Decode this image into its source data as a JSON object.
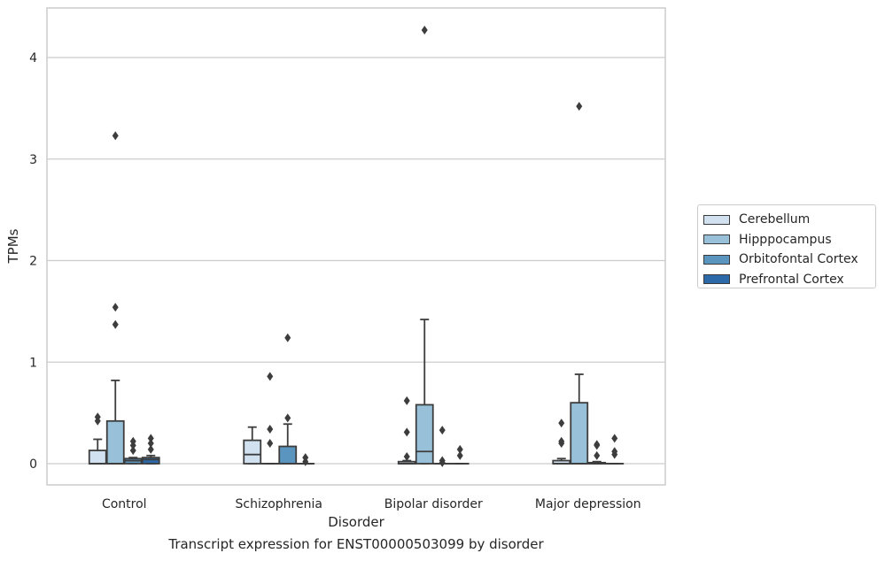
{
  "caption": "Transcript expression for ENST00000503099 by disorder",
  "chart_data": {
    "type": "box",
    "xlabel": "Disorder",
    "ylabel": "TPMs",
    "ylim": [
      -0.2,
      4.5
    ],
    "yticks": [
      0,
      1,
      2,
      3,
      4
    ],
    "grid": true,
    "legend_position": "right",
    "categories": [
      "Control",
      "Schizophrenia",
      "Bipolar disorder",
      "Major depression"
    ],
    "series": [
      {
        "name": "Cerebellum",
        "color": "#d1e1f0",
        "boxes": [
          {
            "low": 0,
            "q1": 0,
            "median": 0,
            "q3": 0.13,
            "high": 0.24,
            "outliers": [
              0.42,
              0.46
            ]
          },
          {
            "low": 0,
            "q1": 0,
            "median": 0.09,
            "q3": 0.23,
            "high": 0.36,
            "outliers": []
          },
          {
            "low": 0,
            "q1": 0,
            "median": 0,
            "q3": 0.02,
            "high": 0.03,
            "outliers": [
              0.07,
              0.31,
              0.62
            ]
          },
          {
            "low": 0,
            "q1": 0,
            "median": 0,
            "q3": 0.03,
            "high": 0.05,
            "outliers": [
              0.2,
              0.22,
              0.4
            ]
          }
        ]
      },
      {
        "name": "Hipppocampus",
        "color": "#98c1d9",
        "boxes": [
          {
            "low": 0,
            "q1": 0,
            "median": 0,
            "q3": 0.42,
            "high": 0.82,
            "outliers": [
              1.37,
              1.54,
              3.23
            ]
          },
          {
            "low": 0,
            "q1": 0,
            "median": 0,
            "q3": 0,
            "high": 0,
            "outliers": [
              0.2,
              0.34,
              0.86
            ]
          },
          {
            "low": 0,
            "q1": 0,
            "median": 0.12,
            "q3": 0.58,
            "high": 1.42,
            "outliers": [
              4.27
            ]
          },
          {
            "low": 0,
            "q1": 0,
            "median": 0,
            "q3": 0.6,
            "high": 0.88,
            "outliers": [
              3.52
            ]
          }
        ]
      },
      {
        "name": "Orbitofontal Cortex",
        "color": "#5a95c0",
        "boxes": [
          {
            "low": 0,
            "q1": 0,
            "median": 0.03,
            "q3": 0.05,
            "high": 0.06,
            "outliers": [
              0.13,
              0.18,
              0.22
            ]
          },
          {
            "low": 0,
            "q1": 0,
            "median": 0,
            "q3": 0.17,
            "high": 0.39,
            "outliers": [
              0.45,
              1.24
            ]
          },
          {
            "low": 0,
            "q1": 0,
            "median": 0,
            "q3": 0,
            "high": 0,
            "outliers": [
              0.01,
              0.03,
              0.33
            ]
          },
          {
            "low": 0,
            "q1": 0,
            "median": 0,
            "q3": 0.01,
            "high": 0.02,
            "outliers": [
              0.08,
              0.18,
              0.19
            ]
          }
        ]
      },
      {
        "name": "Prefrontal Cortex",
        "color": "#2c69a8",
        "boxes": [
          {
            "low": 0,
            "q1": 0,
            "median": 0.04,
            "q3": 0.06,
            "high": 0.08,
            "outliers": [
              0.14,
              0.2,
              0.25
            ]
          },
          {
            "low": 0,
            "q1": 0,
            "median": 0,
            "q3": 0,
            "high": 0,
            "outliers": [
              0.02,
              0.06
            ]
          },
          {
            "low": 0,
            "q1": 0,
            "median": 0,
            "q3": 0,
            "high": 0,
            "outliers": [
              0.08,
              0.14
            ]
          },
          {
            "low": 0,
            "q1": 0,
            "median": 0,
            "q3": 0,
            "high": 0,
            "outliers": [
              0.09,
              0.12,
              0.25
            ]
          }
        ]
      }
    ]
  }
}
